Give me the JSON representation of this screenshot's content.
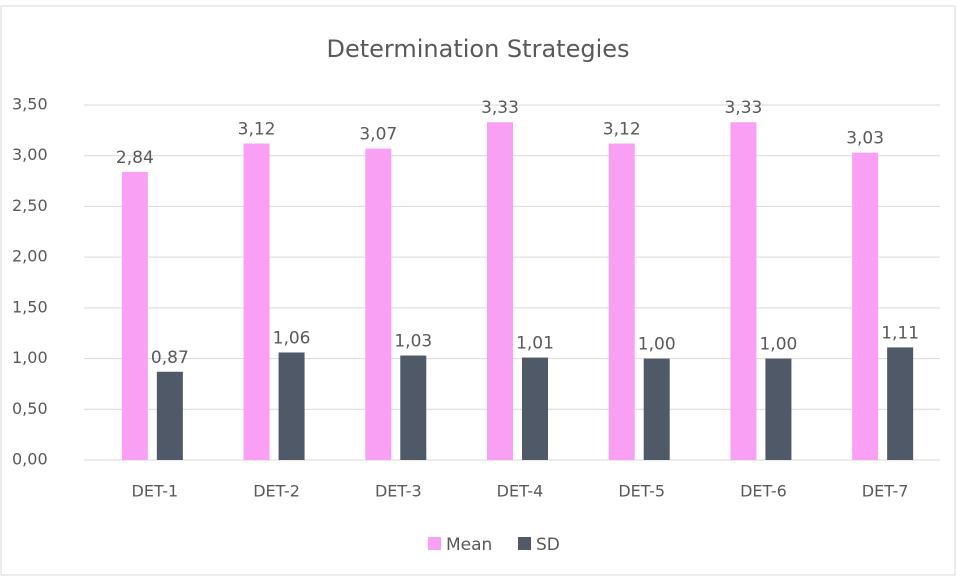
{
  "chart_data": {
    "type": "bar",
    "title": "Determination Strategies",
    "categories": [
      "DET-1",
      "DET-2",
      "DET-3",
      "DET-4",
      "DET-5",
      "DET-6",
      "DET-7"
    ],
    "series": [
      {
        "name": "Mean",
        "color": "#f9a0f4",
        "values": [
          2.84,
          3.12,
          3.07,
          3.33,
          3.12,
          3.33,
          3.03
        ],
        "value_labels": [
          "2,84",
          "3,12",
          "3,07",
          "3,33",
          "3,12",
          "3,33",
          "3,03"
        ]
      },
      {
        "name": "SD",
        "color": "#4f5968",
        "values": [
          0.87,
          1.06,
          1.03,
          1.01,
          1.0,
          1.0,
          1.11
        ],
        "value_labels": [
          "0,87",
          "1,06",
          "1,03",
          "1,01",
          "1,00",
          "1,00",
          "1,11"
        ]
      }
    ],
    "ylim": [
      0,
      3.5
    ],
    "yticks": [
      {
        "value": 0,
        "label": "0,00"
      },
      {
        "value": 0.5,
        "label": "0,50"
      },
      {
        "value": 1,
        "label": "1,00"
      },
      {
        "value": 1.5,
        "label": "1,50"
      },
      {
        "value": 2,
        "label": "2,00"
      },
      {
        "value": 2.5,
        "label": "2,50"
      },
      {
        "value": 3,
        "label": "3,00"
      },
      {
        "value": 3.5,
        "label": "3,50"
      }
    ],
    "grid": true,
    "legend": "bottom"
  }
}
